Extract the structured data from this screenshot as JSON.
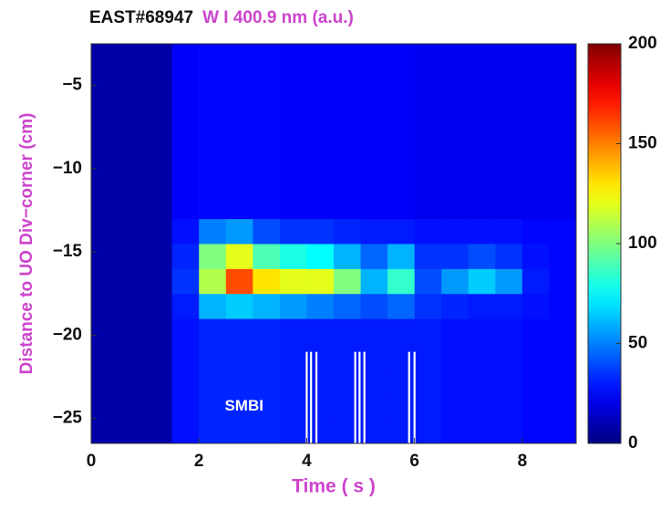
{
  "chart_data": {
    "type": "heatmap",
    "title": "EAST#68947",
    "subtitle": "W I 400.9 nm (a.u.)",
    "xlabel": "Time ( s )",
    "ylabel": "Distance to UO Div−corner (cm)",
    "xlim": [
      0,
      9
    ],
    "ylim": [
      -26.5,
      -2.5
    ],
    "xticks": [
      0,
      2,
      4,
      6,
      8
    ],
    "yticks": [
      {
        "value": -5,
        "label": "−5"
      },
      {
        "value": -10,
        "label": "−10"
      },
      {
        "value": -15,
        "label": "−15"
      },
      {
        "value": -20,
        "label": "−20"
      },
      {
        "value": -25,
        "label": "−25"
      }
    ],
    "x_edges": [
      0,
      0.5,
      1,
      1.5,
      2,
      2.5,
      3,
      3.5,
      4,
      4.5,
      5,
      5.5,
      6,
      6.5,
      7,
      7.5,
      8,
      8.5,
      9
    ],
    "y_edges": [
      -26.5,
      -25,
      -23.5,
      -22,
      -20.5,
      -19,
      -17.5,
      -16,
      -14.5,
      -13,
      -11.5,
      -10,
      -8.5,
      -7,
      -5.5,
      -4,
      -2.5
    ],
    "z": [
      [
        8,
        8,
        8,
        28,
        32,
        32,
        32,
        30,
        30,
        30,
        30,
        30,
        30,
        28,
        28,
        28,
        26,
        26
      ],
      [
        8,
        8,
        8,
        28,
        32,
        32,
        32,
        30,
        30,
        30,
        30,
        30,
        30,
        28,
        28,
        28,
        26,
        26
      ],
      [
        8,
        8,
        8,
        28,
        32,
        32,
        32,
        30,
        30,
        30,
        30,
        30,
        30,
        28,
        28,
        28,
        26,
        26
      ],
      [
        8,
        8,
        8,
        28,
        32,
        32,
        32,
        30,
        30,
        30,
        30,
        30,
        30,
        28,
        28,
        28,
        26,
        26
      ],
      [
        8,
        8,
        8,
        28,
        32,
        32,
        32,
        30,
        30,
        30,
        30,
        30,
        30,
        28,
        28,
        28,
        26,
        26
      ],
      [
        8,
        8,
        8,
        30,
        60,
        65,
        60,
        55,
        50,
        45,
        40,
        45,
        35,
        32,
        30,
        30,
        28,
        26
      ],
      [
        8,
        8,
        8,
        35,
        110,
        160,
        130,
        120,
        120,
        100,
        60,
        85,
        40,
        55,
        65,
        55,
        30,
        26
      ],
      [
        8,
        8,
        8,
        32,
        100,
        120,
        90,
        80,
        75,
        60,
        45,
        60,
        35,
        35,
        40,
        35,
        28,
        26
      ],
      [
        8,
        8,
        8,
        28,
        50,
        55,
        40,
        35,
        35,
        32,
        30,
        30,
        28,
        28,
        28,
        28,
        26,
        26
      ],
      [
        8,
        8,
        8,
        24,
        26,
        26,
        26,
        24,
        24,
        24,
        24,
        24,
        22,
        22,
        22,
        22,
        22,
        22
      ],
      [
        8,
        8,
        8,
        24,
        26,
        26,
        26,
        24,
        24,
        24,
        24,
        24,
        22,
        22,
        22,
        22,
        22,
        22
      ],
      [
        8,
        8,
        8,
        24,
        26,
        26,
        26,
        24,
        24,
        24,
        24,
        24,
        22,
        22,
        22,
        22,
        22,
        22
      ],
      [
        8,
        8,
        8,
        24,
        26,
        26,
        26,
        24,
        24,
        24,
        24,
        24,
        22,
        22,
        22,
        22,
        22,
        22
      ],
      [
        8,
        8,
        8,
        24,
        26,
        26,
        26,
        24,
        24,
        24,
        24,
        24,
        22,
        22,
        22,
        22,
        22,
        22
      ],
      [
        8,
        8,
        8,
        24,
        26,
        26,
        26,
        24,
        24,
        24,
        24,
        24,
        22,
        22,
        22,
        22,
        22,
        22
      ],
      [
        8,
        8,
        8,
        24,
        26,
        26,
        26,
        24,
        24,
        24,
        24,
        24,
        22,
        22,
        22,
        22,
        22,
        22
      ]
    ],
    "colormap": "jet",
    "clim": [
      0,
      200
    ],
    "cticks": [
      0,
      50,
      100,
      150,
      200
    ],
    "annotation": {
      "text": "SMBI",
      "times": [
        4.0,
        4.08,
        4.18,
        4.9,
        4.98,
        5.07,
        5.9,
        6.0
      ],
      "top": -21,
      "color": "#ffffff"
    },
    "title_color": "#111111",
    "label_color": "#cc44cc"
  }
}
